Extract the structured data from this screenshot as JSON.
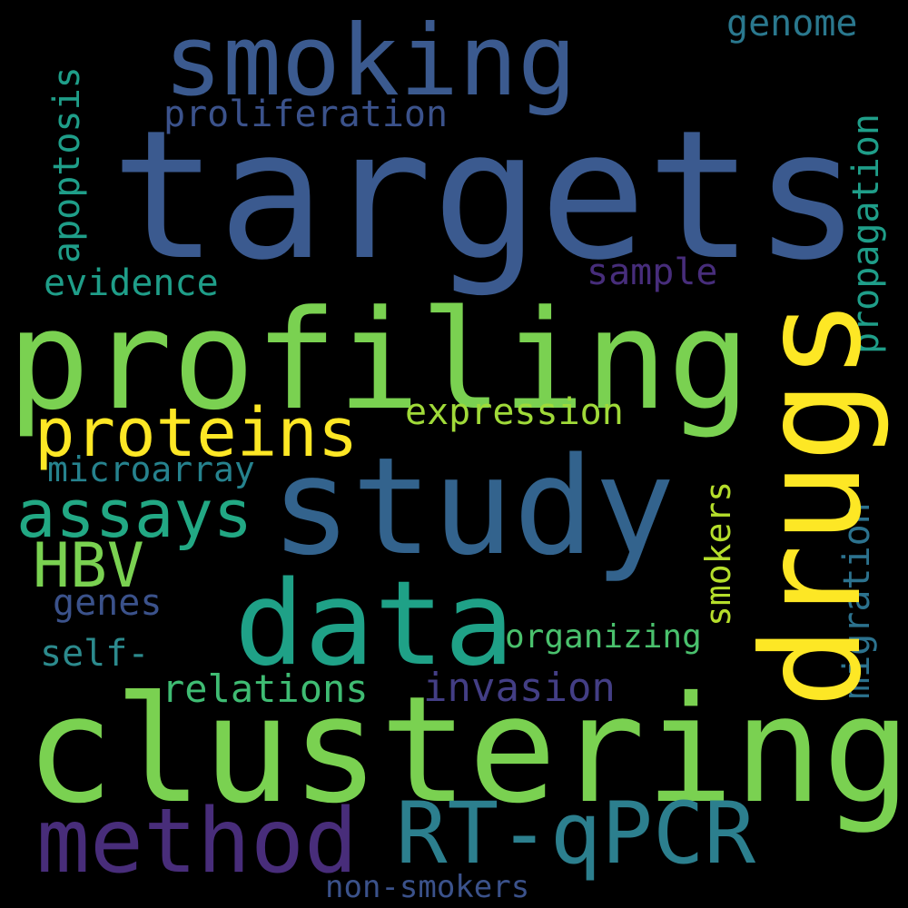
{
  "words": {
    "targets": {
      "text": "targets",
      "color": "#3b5a8f"
    },
    "profiling": {
      "text": "profiling",
      "color": "#7ad151"
    },
    "clustering": {
      "text": "clustering",
      "color": "#7ad151"
    },
    "study": {
      "text": "study",
      "color": "#33638d"
    },
    "smoking": {
      "text": "smoking",
      "color": "#3b5a8f"
    },
    "drugs": {
      "text": "drugs",
      "color": "#fde725"
    },
    "data": {
      "text": "data",
      "color": "#1fa187"
    },
    "method": {
      "text": "method",
      "color": "#482d7a"
    },
    "rtqpcr": {
      "text": "RT-qPCR",
      "color": "#2c7f8e"
    },
    "proteins": {
      "text": "proteins",
      "color": "#fde725"
    },
    "assays": {
      "text": "assays",
      "color": "#22a884"
    },
    "hbv": {
      "text": "HBV",
      "color": "#7ad151"
    },
    "expression": {
      "text": "expression",
      "color": "#a0da39"
    },
    "proliferation": {
      "text": "proliferation",
      "color": "#3b528b"
    },
    "genome": {
      "text": "genome",
      "color": "#2a788e"
    },
    "sample": {
      "text": "sample",
      "color": "#472d7b"
    },
    "evidence": {
      "text": "evidence",
      "color": "#1f9e89"
    },
    "microarray": {
      "text": "microarray",
      "color": "#26828e"
    },
    "genes": {
      "text": "genes",
      "color": "#3b528b"
    },
    "self": {
      "text": "self-",
      "color": "#2c8a8d"
    },
    "organizing": {
      "text": "organizing",
      "color": "#4ac16d"
    },
    "relations": {
      "text": "relations",
      "color": "#3fbc73"
    },
    "invasion": {
      "text": "invasion",
      "color": "#433e85"
    },
    "nonsmokers": {
      "text": "non-smokers",
      "color": "#3b528b"
    },
    "apoptosis": {
      "text": "apoptosis",
      "color": "#1f9e89"
    },
    "propagation": {
      "text": "propagation",
      "color": "#1f9e89"
    },
    "smokers": {
      "text": "smokers",
      "color": "#b5de2b"
    },
    "migration": {
      "text": "migration",
      "color": "#2c728e"
    }
  }
}
